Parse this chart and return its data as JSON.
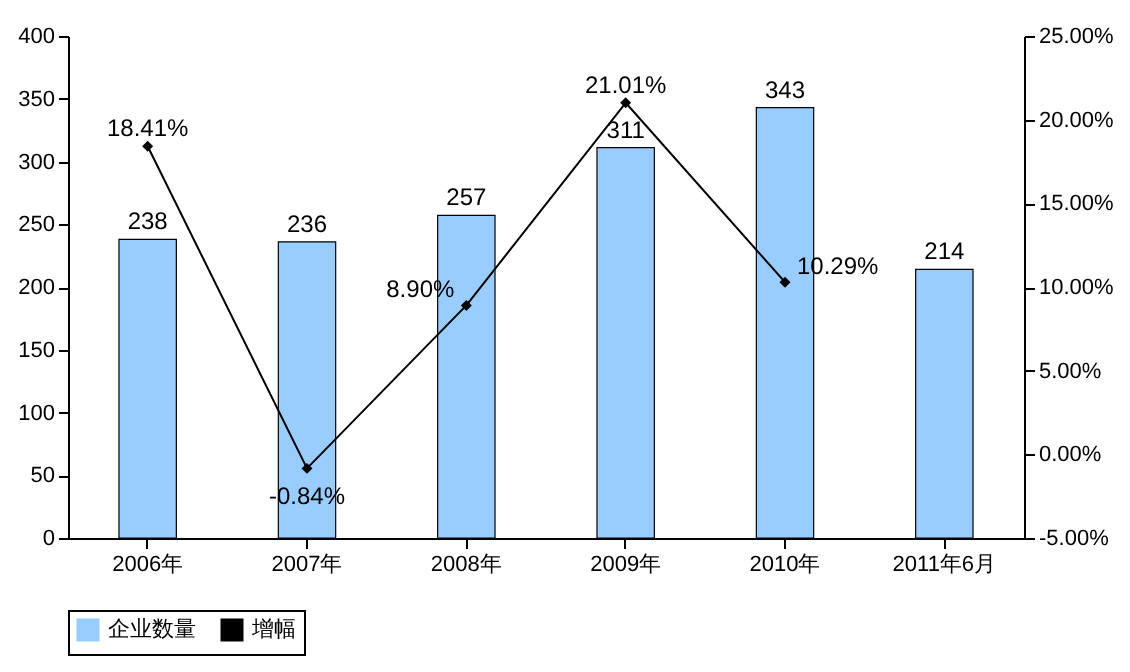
{
  "chart_data": {
    "type": "bar",
    "categories": [
      "2006年",
      "2007年",
      "2008年",
      "2009年",
      "2010年",
      "2011年6月"
    ],
    "series": [
      {
        "name": "企业数量",
        "color": "#99ccff",
        "values": [
          238,
          236,
          257,
          311,
          343,
          214
        ],
        "value_labels": [
          "238",
          "236",
          "257",
          "311",
          "343",
          "214"
        ]
      },
      {
        "name": "增幅",
        "type": "line",
        "axis": "y2",
        "color": "#000000",
        "values": [
          18.41,
          -0.84,
          8.9,
          21.01,
          10.29,
          null
        ],
        "value_labels": [
          "18.41%",
          "-0.84%",
          "8.90%",
          "21.01%",
          "10.29%",
          null
        ]
      }
    ],
    "ylim": [
      0,
      400
    ],
    "yticks": [
      0,
      50,
      100,
      150,
      200,
      250,
      300,
      350,
      400
    ],
    "y2lim": [
      -5,
      25
    ],
    "y2ticks": [
      {
        "value": -5,
        "label": "-5.00%"
      },
      {
        "value": 0,
        "label": "0.00%"
      },
      {
        "value": 5,
        "label": "5.00%"
      },
      {
        "value": 10,
        "label": "10.00%"
      },
      {
        "value": 15,
        "label": "15.00%"
      },
      {
        "value": 20,
        "label": "20.00%"
      },
      {
        "value": 25,
        "label": "25.00%"
      }
    ],
    "legend": "bottom",
    "marker": "diamond"
  }
}
